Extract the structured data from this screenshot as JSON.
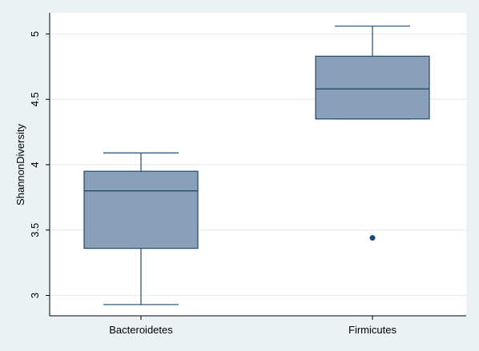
{
  "chart_data": {
    "type": "box",
    "title": "",
    "xlabel": "",
    "ylabel": "ShannonDiversity",
    "ylim": [
      2.92,
      5.17
    ],
    "yticks": [
      3,
      3.5,
      4,
      4.5,
      5
    ],
    "ytick_labels": [
      "3",
      "3.5",
      "4",
      "4.5",
      "5"
    ],
    "grid": "horizontal",
    "categories": [
      "Bacteroidetes",
      "Firmicutes"
    ],
    "boxes": [
      {
        "category": "Bacteroidetes",
        "whisker_low": 2.93,
        "q1": 3.36,
        "median": 3.8,
        "q3": 3.95,
        "whisker_high": 4.09,
        "outliers": []
      },
      {
        "category": "Firmicutes",
        "whisker_low": 4.35,
        "q1": 4.35,
        "median": 4.58,
        "q3": 4.83,
        "whisker_high": 5.06,
        "outliers": [
          3.44
        ]
      }
    ],
    "colors": {
      "box_fill": "#8aa0b8",
      "box_stroke": "#1f4a6b",
      "outlier": "#1a4a7a",
      "grid": "#e8eded",
      "plot_bg": "#ffffff",
      "page_bg": "#eaf2f3"
    }
  }
}
